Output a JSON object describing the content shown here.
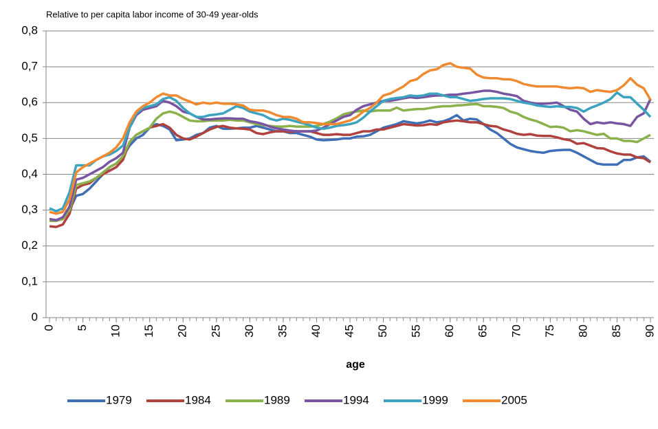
{
  "chart_data": {
    "type": "line",
    "subtitle": "Relative to per capita labor income of 30-49 year-olds",
    "x_label": "age",
    "x": [
      0,
      1,
      2,
      3,
      4,
      5,
      6,
      7,
      8,
      9,
      10,
      11,
      12,
      13,
      14,
      15,
      16,
      17,
      18,
      19,
      20,
      21,
      22,
      23,
      24,
      25,
      26,
      27,
      28,
      29,
      30,
      31,
      32,
      33,
      34,
      35,
      36,
      37,
      38,
      39,
      40,
      41,
      42,
      43,
      44,
      45,
      46,
      47,
      48,
      49,
      50,
      51,
      52,
      53,
      54,
      55,
      56,
      57,
      58,
      59,
      60,
      61,
      62,
      63,
      64,
      65,
      66,
      67,
      68,
      69,
      70,
      71,
      72,
      73,
      74,
      75,
      76,
      77,
      78,
      79,
      80,
      81,
      82,
      83,
      84,
      85,
      86,
      87,
      88,
      89,
      90
    ],
    "xlim": [
      0,
      90
    ],
    "xticks": [
      0,
      5,
      10,
      15,
      20,
      25,
      30,
      35,
      40,
      45,
      50,
      55,
      60,
      65,
      70,
      75,
      80,
      85,
      90
    ],
    "ylim": [
      0,
      0.8
    ],
    "yticks": [
      0,
      {
        "value": 0.1,
        "label": "0,1"
      },
      {
        "value": 0.2,
        "label": "0,2"
      },
      {
        "value": 0.3,
        "label": "0,3"
      },
      {
        "value": 0.4,
        "label": "0,4"
      },
      {
        "value": 0.5,
        "label": "0,5"
      },
      {
        "value": 0.6,
        "label": "0,6"
      },
      {
        "value": 0.7,
        "label": "0,7"
      },
      {
        "value": 0.8,
        "label": "0,8"
      }
    ],
    "grid": true,
    "legend": "bottom",
    "series": [
      {
        "name": "1979",
        "color": "#3e6eb5",
        "values": [
          0.27,
          0.27,
          0.28,
          0.3,
          0.34,
          0.345,
          0.36,
          0.38,
          0.4,
          0.42,
          0.43,
          0.45,
          0.48,
          0.5,
          0.51,
          0.53,
          0.54,
          0.535,
          0.525,
          0.495,
          0.497,
          0.5,
          0.51,
          0.515,
          0.53,
          0.535,
          0.527,
          0.527,
          0.528,
          0.53,
          0.53,
          0.535,
          0.53,
          0.525,
          0.52,
          0.52,
          0.515,
          0.515,
          0.51,
          0.505,
          0.497,
          0.495,
          0.496,
          0.497,
          0.5,
          0.5,
          0.505,
          0.506,
          0.51,
          0.52,
          0.53,
          0.535,
          0.54,
          0.548,
          0.545,
          0.542,
          0.545,
          0.55,
          0.545,
          0.548,
          0.555,
          0.565,
          0.55,
          0.555,
          0.553,
          0.54,
          0.525,
          0.515,
          0.5,
          0.485,
          0.475,
          0.47,
          0.465,
          0.462,
          0.46,
          0.465,
          0.467,
          0.468,
          0.468,
          0.46,
          0.45,
          0.44,
          0.43,
          0.427,
          0.427,
          0.427,
          0.44,
          0.44,
          0.447,
          0.45,
          0.435
        ]
      },
      {
        "name": "1984",
        "color": "#b0413e",
        "values": [
          0.255,
          0.253,
          0.26,
          0.29,
          0.36,
          0.37,
          0.375,
          0.39,
          0.4,
          0.41,
          0.42,
          0.44,
          0.49,
          0.51,
          0.52,
          0.53,
          0.535,
          0.54,
          0.53,
          0.51,
          0.5,
          0.497,
          0.505,
          0.515,
          0.525,
          0.532,
          0.535,
          0.53,
          0.528,
          0.527,
          0.525,
          0.515,
          0.512,
          0.517,
          0.52,
          0.52,
          0.518,
          0.52,
          0.52,
          0.52,
          0.515,
          0.51,
          0.51,
          0.512,
          0.51,
          0.51,
          0.515,
          0.52,
          0.52,
          0.525,
          0.525,
          0.53,
          0.535,
          0.54,
          0.538,
          0.536,
          0.537,
          0.54,
          0.538,
          0.545,
          0.548,
          0.55,
          0.548,
          0.545,
          0.545,
          0.54,
          0.535,
          0.533,
          0.525,
          0.52,
          0.513,
          0.51,
          0.512,
          0.508,
          0.507,
          0.507,
          0.503,
          0.498,
          0.495,
          0.485,
          0.487,
          0.48,
          0.473,
          0.472,
          0.464,
          0.458,
          0.455,
          0.455,
          0.447,
          0.445,
          0.433
        ]
      },
      {
        "name": "1989",
        "color": "#8bb14a",
        "values": [
          0.27,
          0.27,
          0.275,
          0.3,
          0.37,
          0.375,
          0.38,
          0.39,
          0.405,
          0.42,
          0.43,
          0.45,
          0.49,
          0.51,
          0.52,
          0.53,
          0.555,
          0.57,
          0.575,
          0.57,
          0.56,
          0.55,
          0.548,
          0.548,
          0.55,
          0.55,
          0.55,
          0.552,
          0.55,
          0.55,
          0.545,
          0.54,
          0.537,
          0.535,
          0.533,
          0.533,
          0.535,
          0.533,
          0.533,
          0.533,
          0.535,
          0.54,
          0.547,
          0.556,
          0.567,
          0.572,
          0.575,
          0.578,
          0.575,
          0.578,
          0.578,
          0.578,
          0.586,
          0.578,
          0.58,
          0.582,
          0.582,
          0.585,
          0.588,
          0.59,
          0.59,
          0.592,
          0.593,
          0.595,
          0.596,
          0.59,
          0.59,
          0.588,
          0.585,
          0.575,
          0.57,
          0.56,
          0.553,
          0.548,
          0.54,
          0.532,
          0.533,
          0.53,
          0.52,
          0.523,
          0.52,
          0.515,
          0.51,
          0.513,
          0.5,
          0.5,
          0.493,
          0.493,
          0.49,
          0.5,
          0.51
        ]
      },
      {
        "name": "1994",
        "color": "#7855a0",
        "values": [
          0.275,
          0.272,
          0.28,
          0.31,
          0.385,
          0.39,
          0.4,
          0.41,
          0.42,
          0.435,
          0.445,
          0.46,
          0.53,
          0.565,
          0.58,
          0.585,
          0.59,
          0.605,
          0.6,
          0.59,
          0.575,
          0.57,
          0.56,
          0.553,
          0.553,
          0.555,
          0.556,
          0.556,
          0.555,
          0.555,
          0.548,
          0.545,
          0.54,
          0.533,
          0.528,
          0.525,
          0.522,
          0.52,
          0.52,
          0.52,
          0.522,
          0.53,
          0.54,
          0.55,
          0.56,
          0.565,
          0.58,
          0.59,
          0.595,
          0.6,
          0.605,
          0.605,
          0.608,
          0.612,
          0.615,
          0.613,
          0.615,
          0.618,
          0.62,
          0.62,
          0.622,
          0.622,
          0.625,
          0.627,
          0.63,
          0.633,
          0.633,
          0.63,
          0.625,
          0.622,
          0.618,
          0.605,
          0.6,
          0.597,
          0.597,
          0.598,
          0.6,
          0.59,
          0.58,
          0.575,
          0.555,
          0.54,
          0.545,
          0.542,
          0.545,
          0.542,
          0.54,
          0.535,
          0.56,
          0.57,
          0.61
        ]
      },
      {
        "name": "1999",
        "color": "#3ba3bf",
        "values": [
          0.305,
          0.297,
          0.305,
          0.35,
          0.425,
          0.425,
          0.425,
          0.44,
          0.45,
          0.455,
          0.465,
          0.48,
          0.53,
          0.57,
          0.585,
          0.59,
          0.595,
          0.61,
          0.615,
          0.605,
          0.585,
          0.57,
          0.56,
          0.56,
          0.565,
          0.567,
          0.57,
          0.58,
          0.59,
          0.585,
          0.575,
          0.57,
          0.565,
          0.555,
          0.55,
          0.555,
          0.552,
          0.547,
          0.542,
          0.537,
          0.53,
          0.527,
          0.53,
          0.535,
          0.537,
          0.54,
          0.545,
          0.558,
          0.575,
          0.59,
          0.605,
          0.61,
          0.613,
          0.615,
          0.62,
          0.618,
          0.62,
          0.625,
          0.625,
          0.62,
          0.615,
          0.615,
          0.61,
          0.605,
          0.607,
          0.61,
          0.612,
          0.612,
          0.612,
          0.61,
          0.605,
          0.6,
          0.597,
          0.592,
          0.59,
          0.588,
          0.59,
          0.588,
          0.588,
          0.585,
          0.575,
          0.585,
          0.592,
          0.6,
          0.61,
          0.628,
          0.615,
          0.615,
          0.597,
          0.58,
          0.56
        ]
      },
      {
        "name": "2005",
        "color": "#f08a30",
        "values": [
          0.295,
          0.29,
          0.295,
          0.33,
          0.405,
          0.42,
          0.43,
          0.44,
          0.45,
          0.46,
          0.475,
          0.5,
          0.545,
          0.575,
          0.59,
          0.6,
          0.615,
          0.625,
          0.62,
          0.62,
          0.61,
          0.603,
          0.595,
          0.6,
          0.597,
          0.6,
          0.597,
          0.597,
          0.595,
          0.592,
          0.58,
          0.578,
          0.578,
          0.573,
          0.565,
          0.56,
          0.56,
          0.555,
          0.545,
          0.545,
          0.543,
          0.54,
          0.54,
          0.54,
          0.545,
          0.55,
          0.56,
          0.575,
          0.585,
          0.6,
          0.62,
          0.625,
          0.635,
          0.645,
          0.66,
          0.665,
          0.68,
          0.69,
          0.693,
          0.705,
          0.71,
          0.7,
          0.697,
          0.695,
          0.678,
          0.67,
          0.668,
          0.668,
          0.665,
          0.665,
          0.66,
          0.652,
          0.648,
          0.645,
          0.645,
          0.645,
          0.645,
          0.642,
          0.64,
          0.642,
          0.64,
          0.63,
          0.635,
          0.632,
          0.63,
          0.635,
          0.648,
          0.668,
          0.65,
          0.64,
          0.608
        ]
      }
    ]
  }
}
